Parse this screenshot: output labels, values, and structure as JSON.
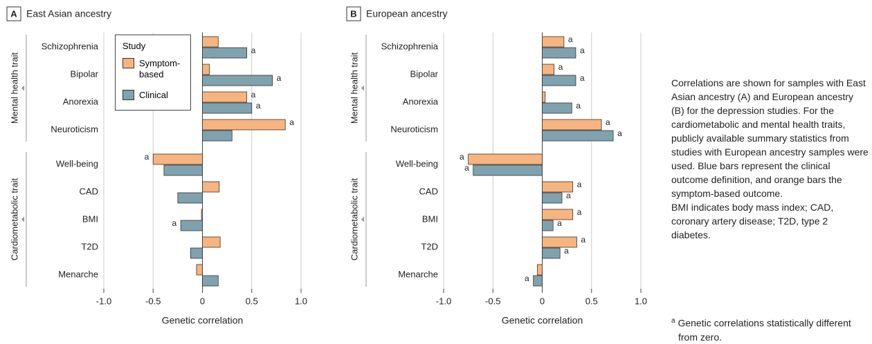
{
  "chart_data": [
    {
      "type": "bar",
      "panel": "A",
      "title": "East Asian ancestry",
      "xlabel": "Genetic correlation",
      "groups": [
        {
          "label": "Mental health trait",
          "categories": [
            "Schizophrenia",
            "Bipolar",
            "Anorexia",
            "Neuroticism"
          ]
        },
        {
          "label": "Cardiometabolic trait",
          "categories": [
            "Well-being",
            "CAD",
            "BMI",
            "T2D",
            "Menarche"
          ]
        }
      ],
      "series": [
        {
          "name": "Symptom-based",
          "color": "#f8b47e",
          "values": [
            0.16,
            0.07,
            0.45,
            0.84,
            -0.5,
            0.17,
            -0.01,
            0.18,
            -0.06
          ],
          "significance": [
            null,
            null,
            "a",
            "a",
            "a",
            null,
            null,
            null,
            null
          ]
        },
        {
          "name": "Clinical",
          "color": "#7fa2ae",
          "values": [
            0.45,
            0.71,
            0.5,
            0.3,
            -0.39,
            -0.25,
            -0.22,
            -0.12,
            0.16
          ],
          "significance": [
            "a",
            "a",
            "a",
            null,
            null,
            null,
            "a",
            null,
            null
          ]
        }
      ],
      "legend_title": "Study",
      "legend": "upper-left",
      "xlim": [
        -1,
        1
      ],
      "xticks": [
        {
          "value": -1,
          "label": "-1.0"
        },
        -0.5,
        0,
        0.5,
        {
          "value": 1,
          "label": "1.0"
        }
      ],
      "grid": true
    },
    {
      "type": "bar",
      "panel": "B",
      "title": "European ancestry",
      "xlabel": "Genetic correlation",
      "groups": [
        {
          "label": "Mental health trait",
          "categories": [
            "Schizophrenia",
            "Bipolar",
            "Anorexia",
            "Neuroticism"
          ]
        },
        {
          "label": "Cardiometabolic trait",
          "categories": [
            "Well-being",
            "CAD",
            "BMI",
            "T2D",
            "Menarche"
          ]
        }
      ],
      "series": [
        {
          "color": "#f8b47e",
          "values": [
            0.22,
            0.12,
            0.03,
            0.6,
            -0.75,
            0.31,
            0.31,
            0.35,
            -0.05
          ],
          "significance": [
            "a",
            "a",
            null,
            "a",
            "a",
            "a",
            "a",
            "a",
            null
          ]
        },
        {
          "color": "#7fa2ae",
          "values": [
            0.34,
            0.34,
            0.3,
            0.72,
            -0.7,
            0.2,
            0.11,
            0.18,
            -0.09
          ],
          "significance": [
            "a",
            "a",
            "a",
            "a",
            "a",
            "a",
            "a",
            "a",
            "a"
          ]
        }
      ],
      "xlim": [
        -1,
        1
      ],
      "xticks": [
        {
          "value": -1,
          "label": "-1.0"
        },
        -0.5,
        0,
        0.5,
        {
          "value": 1,
          "label": "1.0"
        }
      ],
      "grid": true
    }
  ],
  "caption": "Correlations are shown for samples with East Asian ancestry (A) and European ancestry (B) for the depression studies. For the cardiometabolic and mental health traits, publicly available summary statistics from studies with European ancestry samples were used. Blue bars represent the clinical outcome definition, and orange bars the symptom-based outcome.",
  "abbreviations": "BMI indicates body mass index; CAD, coronary artery disease; T2D, type 2 diabetes.",
  "footnote": {
    "marker": "a",
    "text": "Genetic correlations statistically different from zero."
  }
}
